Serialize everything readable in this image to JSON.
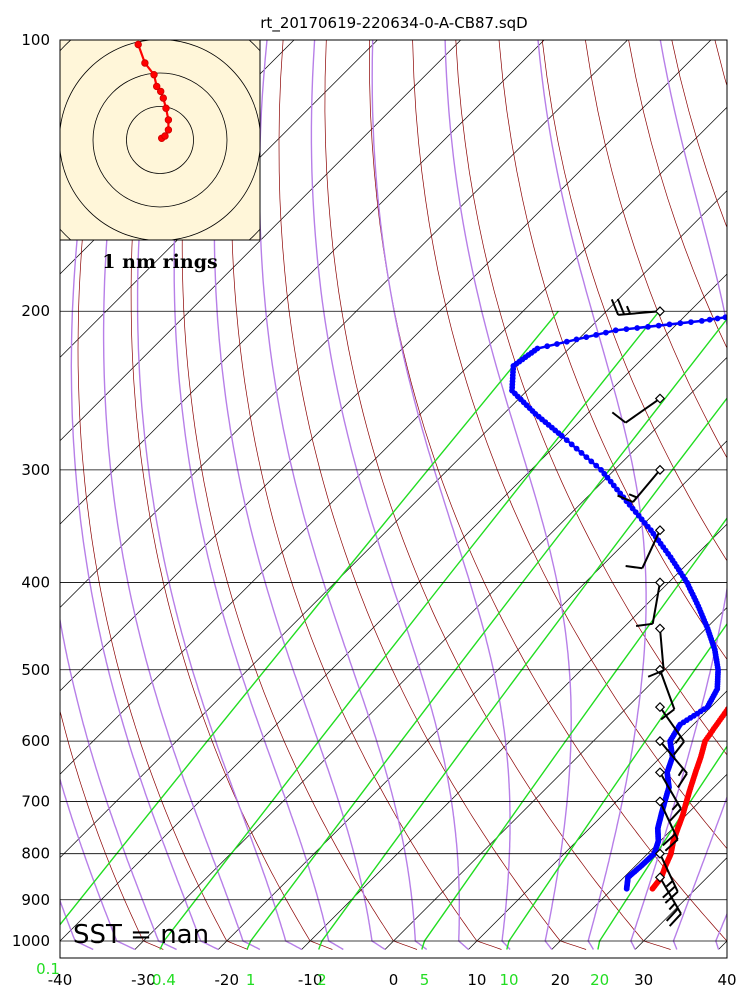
{
  "chart_data": {
    "type": "skew-t",
    "title": "rt_20170619-220634-0-A-CB87.sqD",
    "x_range": [
      -40,
      40
    ],
    "p_range": [
      1000,
      100
    ],
    "x_ticks": [
      "-40",
      "-30",
      "-20",
      "-10",
      "0",
      "10",
      "20",
      "30",
      "40"
    ],
    "x_tick_values": [
      -40,
      -30,
      -20,
      -10,
      0,
      10,
      20,
      30,
      40
    ],
    "p_ticks": [
      "100",
      "200",
      "300",
      "400",
      "500",
      "600",
      "700",
      "800",
      "900",
      "1000"
    ],
    "p_tick_values": [
      100,
      200,
      300,
      400,
      500,
      600,
      700,
      800,
      900,
      1000
    ],
    "mixing_ratio_labels": [
      "0.1",
      "0.4",
      "1",
      "2",
      "5",
      "10",
      "20"
    ],
    "mixing_ratio_values": [
      0.1,
      0.4,
      1,
      2,
      5,
      10,
      20
    ],
    "sst_text": "SST =  nan",
    "hodograph_label": "1 nm rings",
    "temperature": [
      {
        "p": 875,
        "t": 24.8
      },
      {
        "p": 850,
        "t": 24.5
      },
      {
        "p": 825,
        "t": 23.6
      },
      {
        "p": 800,
        "t": 22.8
      },
      {
        "p": 775,
        "t": 21.6
      },
      {
        "p": 750,
        "t": 20.6
      },
      {
        "p": 725,
        "t": 19.6
      },
      {
        "p": 700,
        "t": 18.4
      },
      {
        "p": 675,
        "t": 17.2
      },
      {
        "p": 650,
        "t": 16.0
      },
      {
        "p": 625,
        "t": 14.8
      },
      {
        "p": 600,
        "t": 13.4
      },
      {
        "p": 575,
        "t": 12.8
      },
      {
        "p": 550,
        "t": 12.2
      },
      {
        "p": 525,
        "t": 10.8
      },
      {
        "p": 500,
        "t": 9.2
      },
      {
        "p": 475,
        "t": 7.4
      },
      {
        "p": 450,
        "t": 5.4
      },
      {
        "p": 425,
        "t": 3.2
      },
      {
        "p": 400,
        "t": 0.8
      },
      {
        "p": 375,
        "t": -1.8
      },
      {
        "p": 350,
        "t": -4.6
      },
      {
        "p": 325,
        "t": -7.8
      },
      {
        "p": 300,
        "t": -11.2
      },
      {
        "p": 275,
        "t": -14.8
      },
      {
        "p": 250,
        "t": -19.0
      },
      {
        "p": 225,
        "t": -23.6
      },
      {
        "p": 210,
        "t": -27.0
      },
      {
        "p": 200,
        "t": -29.2
      }
    ],
    "dewpoint": [
      {
        "p": 875,
        "t": 21.7
      },
      {
        "p": 850,
        "t": 20.5
      },
      {
        "p": 825,
        "t": 20.7
      },
      {
        "p": 800,
        "t": 20.8
      },
      {
        "p": 775,
        "t": 19.8
      },
      {
        "p": 750,
        "t": 18.2
      },
      {
        "p": 725,
        "t": 17.0
      },
      {
        "p": 700,
        "t": 15.8
      },
      {
        "p": 675,
        "t": 14.6
      },
      {
        "p": 650,
        "t": 12.6
      },
      {
        "p": 625,
        "t": 11.4
      },
      {
        "p": 600,
        "t": 9.2
      },
      {
        "p": 575,
        "t": 8.4
      },
      {
        "p": 550,
        "t": 9.6
      },
      {
        "p": 525,
        "t": 8.6
      },
      {
        "p": 500,
        "t": 6.4
      },
      {
        "p": 475,
        "t": 3.6
      },
      {
        "p": 450,
        "t": 0.2
      },
      {
        "p": 425,
        "t": -3.6
      },
      {
        "p": 400,
        "t": -7.8
      },
      {
        "p": 375,
        "t": -12.8
      },
      {
        "p": 350,
        "t": -18.4
      },
      {
        "p": 325,
        "t": -24.8
      },
      {
        "p": 300,
        "t": -31.6
      },
      {
        "p": 275,
        "t": -40.4
      },
      {
        "p": 260,
        "t": -46.2
      },
      {
        "p": 245,
        "t": -51.8
      },
      {
        "p": 230,
        "t": -54.6
      },
      {
        "p": 220,
        "t": -53.8
      },
      {
        "p": 210,
        "t": -46.6
      },
      {
        "p": 205,
        "t": -37.4
      },
      {
        "p": 200,
        "t": -31.0
      }
    ],
    "wind_barbs": [
      {
        "p": 850,
        "dir": 150,
        "spd": 25
      },
      {
        "p": 800,
        "dir": 155,
        "spd": 25
      },
      {
        "p": 700,
        "dir": 155,
        "spd": 20
      },
      {
        "p": 650,
        "dir": 150,
        "spd": 15
      },
      {
        "p": 600,
        "dir": 140,
        "spd": 15
      },
      {
        "p": 550,
        "dir": 145,
        "spd": 15
      },
      {
        "p": 500,
        "dir": 160,
        "spd": 10
      },
      {
        "p": 450,
        "dir": 175,
        "spd": 10
      },
      {
        "p": 400,
        "dir": 190,
        "spd": 10
      },
      {
        "p": 350,
        "dir": 205,
        "spd": 10
      },
      {
        "p": 300,
        "dir": 220,
        "spd": 15
      },
      {
        "p": 250,
        "dir": 235,
        "spd": 10
      },
      {
        "p": 200,
        "dir": 265,
        "spd": 25
      }
    ],
    "hodograph_points": [
      {
        "u": 0.05,
        "v": 0.05
      },
      {
        "u": 0.15,
        "v": 0.12
      },
      {
        "u": 0.25,
        "v": 0.3
      },
      {
        "u": 0.25,
        "v": 0.6
      },
      {
        "u": 0.18,
        "v": 0.95
      },
      {
        "u": 0.1,
        "v": 1.25
      },
      {
        "u": 0.02,
        "v": 1.45
      },
      {
        "u": -0.1,
        "v": 1.6
      },
      {
        "u": -0.18,
        "v": 1.95
      },
      {
        "u": -0.45,
        "v": 2.3
      },
      {
        "u": -0.65,
        "v": 2.85
      }
    ],
    "colors": {
      "temperature": "#ff0000",
      "dewpoint": "#0000ff",
      "isotherm": "#000000",
      "dry_adiabat": "#8b0000",
      "moist_adiabat": "#b77fe8",
      "mixing_ratio": "#22dd22",
      "hodograph_bg": "#fff6d9"
    }
  }
}
